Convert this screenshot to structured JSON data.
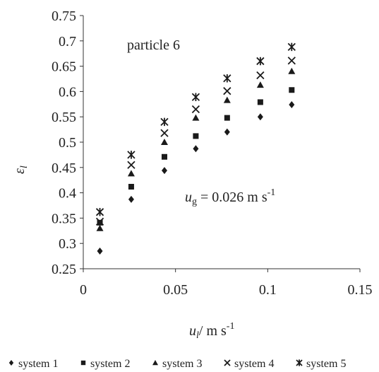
{
  "chart_data": {
    "type": "scatter",
    "title": "",
    "xlabel": "u_l / m s^-1",
    "ylabel": "ε_l",
    "xlim": [
      0,
      0.15
    ],
    "ylim": [
      0.25,
      0.75
    ],
    "xticks": [
      "0",
      "0.05",
      "0.1",
      "0.15"
    ],
    "yticks": [
      "0.25",
      "0.3",
      "0.35",
      "0.4",
      "0.45",
      "0.5",
      "0.55",
      "0.6",
      "0.65",
      "0.7",
      "0.75"
    ],
    "grid": false,
    "legend_position": "bottom",
    "annotations": {
      "particle": "particle 6",
      "ug_var": "u",
      "ug_sub": "g",
      "ug_value": " = 0.026 m s",
      "ug_exp": "-1"
    },
    "x": [
      0.009,
      0.026,
      0.044,
      0.061,
      0.078,
      0.096,
      0.113
    ],
    "series": [
      {
        "name": "system 1",
        "marker": "diamond",
        "values": [
          0.285,
          0.387,
          0.444,
          0.487,
          0.52,
          0.55,
          0.574
        ]
      },
      {
        "name": "system 2",
        "marker": "square",
        "values": [
          0.341,
          0.412,
          0.471,
          0.512,
          0.548,
          0.579,
          0.603
        ]
      },
      {
        "name": "system 3",
        "marker": "triangle",
        "values": [
          0.33,
          0.438,
          0.5,
          0.548,
          0.583,
          0.613,
          0.64
        ]
      },
      {
        "name": "system 4",
        "marker": "x",
        "values": [
          0.343,
          0.455,
          0.518,
          0.565,
          0.601,
          0.632,
          0.661
        ]
      },
      {
        "name": "system 5",
        "marker": "asterisk",
        "values": [
          0.362,
          0.475,
          0.54,
          0.589,
          0.626,
          0.66,
          0.688
        ]
      }
    ]
  },
  "axis_labels": {
    "x_var": "u",
    "x_sub": "l",
    "x_unit": "/ m s",
    "x_exp": "-1",
    "y_var": "ε",
    "y_sub": "l"
  }
}
